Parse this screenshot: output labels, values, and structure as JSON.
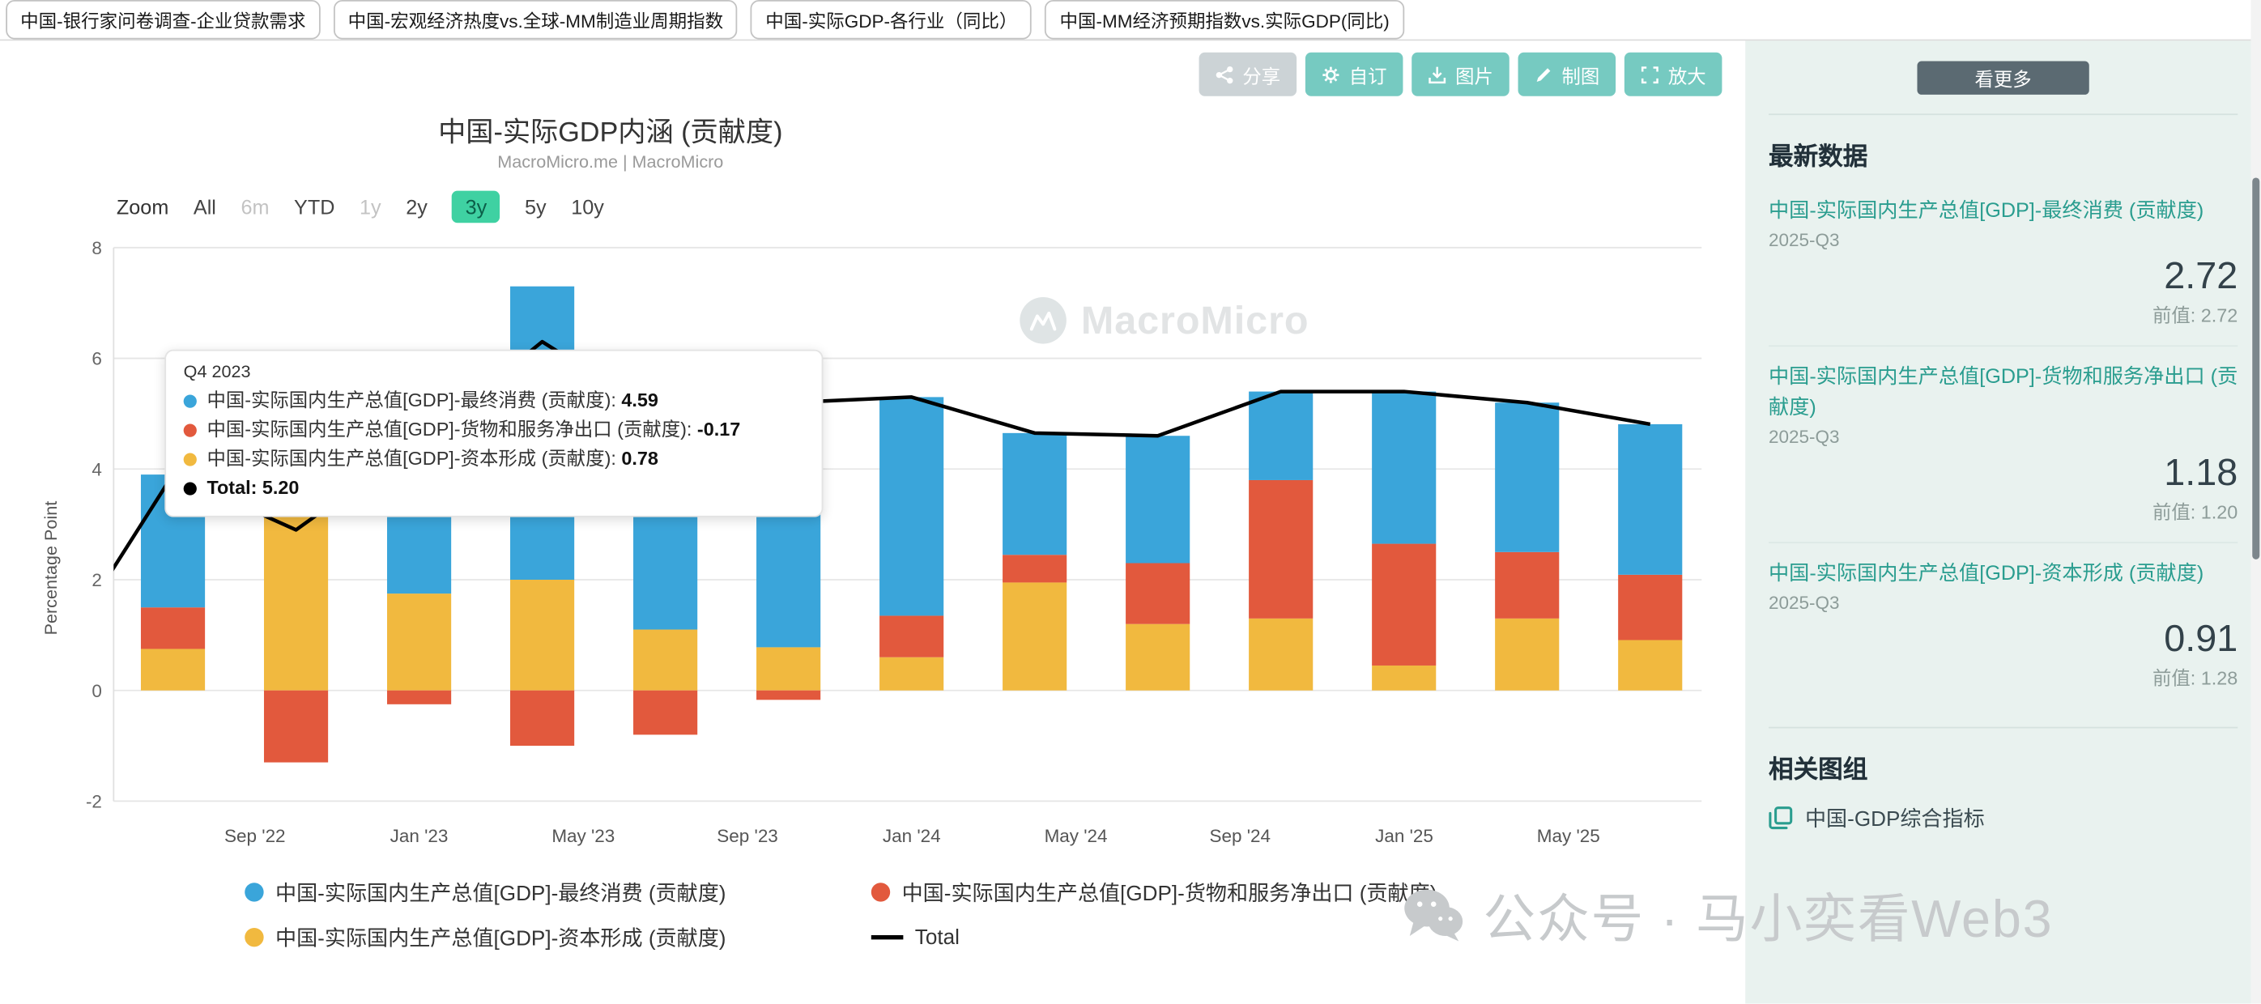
{
  "tabs": [
    "中国-银行家问卷调查-企业贷款需求",
    "中国-宏观经济热度vs.全球-MM制造业周期指数",
    "中国-实际GDP-各行业（同比）",
    "中国-MM经济预期指数vs.实际GDP(同比)"
  ],
  "toolbar": {
    "buttons": [
      {
        "label": "分享",
        "icon": "share-icon",
        "name": "share",
        "variant": "gray"
      },
      {
        "label": "自订",
        "icon": "gear-icon",
        "name": "customize",
        "variant": "teal"
      },
      {
        "label": "图片",
        "icon": "download-image-icon",
        "name": "image",
        "variant": "teal"
      },
      {
        "label": "制图",
        "icon": "pencil-icon",
        "name": "draw",
        "variant": "teal"
      },
      {
        "label": "放大",
        "icon": "expand-icon",
        "name": "zoom-in",
        "variant": "teal"
      }
    ]
  },
  "chart": {
    "title": "中国-实际GDP内涵 (贡献度)",
    "subtitle": "MacroMicro.me | MacroMicro",
    "zoom_label": "Zoom",
    "zoom_options": [
      {
        "label": "All"
      },
      {
        "label": "6m",
        "disabled": true
      },
      {
        "label": "YTD"
      },
      {
        "label": "1y",
        "disabled": true
      },
      {
        "label": "2y"
      },
      {
        "label": "3y",
        "active": true
      },
      {
        "label": "5y"
      },
      {
        "label": "10y"
      }
    ],
    "y_axis_label": "Percentage Point",
    "watermark_text": "MacroMicro",
    "legend": [
      {
        "label": "中国-实际国内生产总值[GDP]-最终消费 (贡献度)",
        "color": "#3AA5DA",
        "marker": "dot"
      },
      {
        "label": "中国-实际国内生产总值[GDP]-货物和服务净出口 (贡献度)",
        "color": "#E2593D",
        "marker": "dot"
      },
      {
        "label": "中国-实际国内生产总值[GDP]-资本形成 (贡献度)",
        "color": "#F1B93F",
        "marker": "dot"
      },
      {
        "label": "Total",
        "color": "#000000",
        "marker": "line"
      }
    ]
  },
  "tooltip": {
    "header": "Q4 2023",
    "rows": [
      {
        "label": "中国-实际国内生产总值[GDP]-最终消费 (贡献度)",
        "value": "4.59",
        "color": "#3AA5DA"
      },
      {
        "label": "中国-实际国内生产总值[GDP]-货物和服务净出口 (贡献度)",
        "value": "-0.17",
        "color": "#E2593D"
      },
      {
        "label": "中国-实际国内生产总值[GDP]-资本形成 (贡献度)",
        "value": "0.78",
        "color": "#F1B93F"
      },
      {
        "label": "Total",
        "value": "5.20",
        "color": "#000000",
        "bold": true
      }
    ]
  },
  "chart_data": {
    "type": "stacked-bar-with-line",
    "title": "中国-实际GDP内涵 (贡献度)",
    "ylabel": "Percentage Point",
    "ylim": [
      -2,
      8
    ],
    "yticks": [
      8,
      6,
      4,
      2,
      0,
      -2
    ],
    "grid": true,
    "legend_position": "bottom",
    "categories": [
      "2022-Q3",
      "2022-Q4",
      "2023-Q1",
      "2023-Q2",
      "2023-Q3",
      "2023-Q4",
      "2024-Q1",
      "2024-Q2",
      "2024-Q3",
      "2024-Q4",
      "2025-Q1",
      "2025-Q2",
      "2025-Q3"
    ],
    "x_tick_labels": [
      "Sep '22",
      "Jan '23",
      "May '23",
      "Sep '23",
      "Jan '24",
      "May '24",
      "Sep '24",
      "Jan '25",
      "May '25"
    ],
    "stack_order_bottom_to_top": [
      2,
      1,
      0
    ],
    "series": [
      {
        "name": "中国-实际国内生产总值[GDP]-最终消费 (贡献度)",
        "type": "bar",
        "color": "#3AA5DA",
        "values": [
          2.4,
          0.8,
          3.0,
          5.3,
          4.6,
          4.59,
          3.95,
          2.2,
          2.3,
          1.6,
          2.75,
          2.7,
          2.72
        ]
      },
      {
        "name": "中国-实际国内生产总值[GDP]-货物和服务净出口 (贡献度)",
        "type": "bar",
        "color": "#E2593D",
        "values": [
          0.75,
          -1.3,
          -0.25,
          -1.0,
          -0.8,
          -0.17,
          0.75,
          0.5,
          1.1,
          2.5,
          2.2,
          1.2,
          1.18
        ]
      },
      {
        "name": "中国-实际国内生产总值[GDP]-资本形成 (贡献度)",
        "type": "bar",
        "color": "#F1B93F",
        "values": [
          0.75,
          3.4,
          1.75,
          2.0,
          1.1,
          0.78,
          0.6,
          1.95,
          1.2,
          1.3,
          0.45,
          1.3,
          0.91
        ]
      },
      {
        "name": "Total",
        "type": "line",
        "color": "#000000",
        "values": [
          3.9,
          2.9,
          4.5,
          6.3,
          4.9,
          5.2,
          5.3,
          4.65,
          4.6,
          5.4,
          5.4,
          5.2,
          4.81
        ],
        "lead_point": {
          "category": "2022-Q2",
          "value": 0.4
        }
      }
    ]
  },
  "sidebar": {
    "see_more": "看更多",
    "latest_title": "最新数据",
    "items": [
      {
        "title": "中国-实际国内生产总值[GDP]-最终消费 (贡献度)",
        "date": "2025-Q3",
        "value": "2.72",
        "prev_label": "前值:",
        "prev_value": "2.72"
      },
      {
        "title": "中国-实际国内生产总值[GDP]-货物和服务净出口 (贡献度)",
        "date": "2025-Q3",
        "value": "1.18",
        "prev_label": "前值:",
        "prev_value": "1.20"
      },
      {
        "title": "中国-实际国内生产总值[GDP]-资本形成 (贡献度)",
        "date": "2025-Q3",
        "value": "0.91",
        "prev_label": "前值:",
        "prev_value": "1.28"
      }
    ],
    "related_title": "相关图组",
    "related_items": [
      {
        "label": "中国-GDP综合指标",
        "icon": "chart-group-icon"
      }
    ]
  },
  "watermark": {
    "text": "公众号 · 马小奕看Web3"
  }
}
